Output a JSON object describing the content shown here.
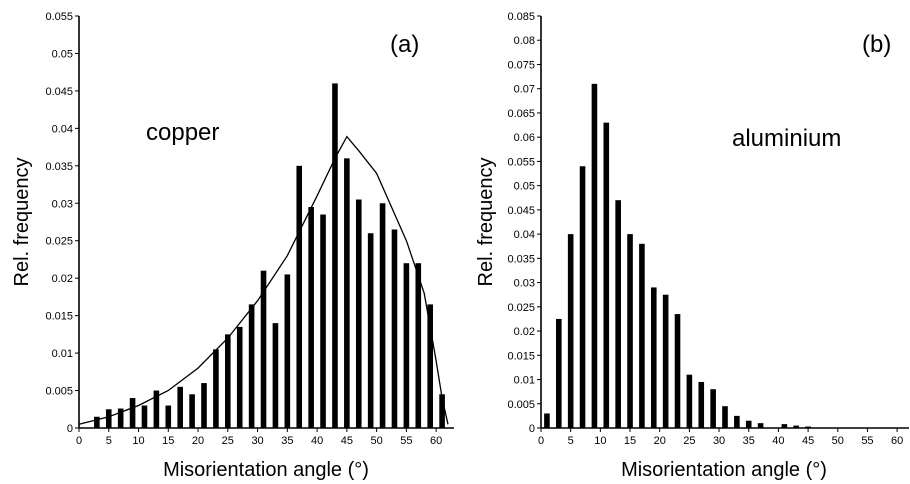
{
  "chart_data": [
    {
      "type": "bar",
      "panel_label": "(a)",
      "annotation": "copper",
      "xlabel": "Misorientation angle (°)",
      "ylabel": "Rel. frequency",
      "xlim": [
        0,
        63
      ],
      "ylim": [
        0,
        0.055
      ],
      "xticks": [
        "0",
        "5",
        "10",
        "15",
        "20",
        "25",
        "30",
        "35",
        "40",
        "45",
        "50",
        "55",
        "60"
      ],
      "yticks": [
        "0",
        "0.005",
        "0.01",
        "0.015",
        "0.02",
        "0.025",
        "0.03",
        "0.035",
        "0.04",
        "0.045",
        "0.05",
        "0.055"
      ],
      "x": [
        3,
        5,
        7,
        9,
        11,
        13,
        15,
        17,
        19,
        21,
        23,
        25,
        27,
        29,
        31,
        33,
        35,
        37,
        39,
        41,
        43,
        45,
        47,
        49,
        51,
        53,
        55,
        57,
        59,
        61
      ],
      "values": [
        0.0015,
        0.0025,
        0.0026,
        0.004,
        0.003,
        0.005,
        0.003,
        0.0055,
        0.0045,
        0.006,
        0.0105,
        0.0125,
        0.0135,
        0.0165,
        0.021,
        0.014,
        0.0205,
        0.035,
        0.0295,
        0.0285,
        0.046,
        0.036,
        0.0305,
        0.026,
        0.03,
        0.0265,
        0.022,
        0.022,
        0.0165,
        0.0045
      ],
      "fit_curve": {
        "x": [
          0,
          5,
          10,
          15,
          20,
          25,
          30,
          35,
          40,
          43,
          45,
          47,
          50,
          55,
          58,
          60,
          61,
          62
        ],
        "y": [
          0.0005,
          0.0015,
          0.003,
          0.005,
          0.008,
          0.012,
          0.017,
          0.023,
          0.031,
          0.036,
          0.0389,
          0.037,
          0.034,
          0.025,
          0.018,
          0.009,
          0.004,
          0.0005
        ]
      }
    },
    {
      "type": "bar",
      "panel_label": "(b)",
      "annotation": "aluminium",
      "xlabel": "Misorientation angle (°)",
      "ylabel": "Rel. frequency",
      "xlim": [
        0,
        62
      ],
      "ylim": [
        0,
        0.085
      ],
      "xticks": [
        "0",
        "5",
        "10",
        "15",
        "20",
        "25",
        "30",
        "35",
        "40",
        "45",
        "50",
        "55",
        "60"
      ],
      "yticks": [
        "0",
        "0.005",
        "0.01",
        "0.015",
        "0.02",
        "0.025",
        "0.03",
        "0.035",
        "0.04",
        "0.045",
        "0.05",
        "0.055",
        "0.06",
        "0.065",
        "0.07",
        "0.075",
        "0.08",
        "0.085"
      ],
      "x": [
        1,
        3,
        5,
        7,
        9,
        11,
        13,
        15,
        17,
        19,
        21,
        23,
        25,
        27,
        29,
        31,
        33,
        35,
        37,
        41,
        43,
        45
      ],
      "values": [
        0.003,
        0.0225,
        0.04,
        0.054,
        0.071,
        0.063,
        0.047,
        0.04,
        0.038,
        0.029,
        0.0275,
        0.0235,
        0.011,
        0.0095,
        0.008,
        0.0045,
        0.0025,
        0.0015,
        0.001,
        0.0008,
        0.0005,
        0.0003
      ]
    }
  ]
}
